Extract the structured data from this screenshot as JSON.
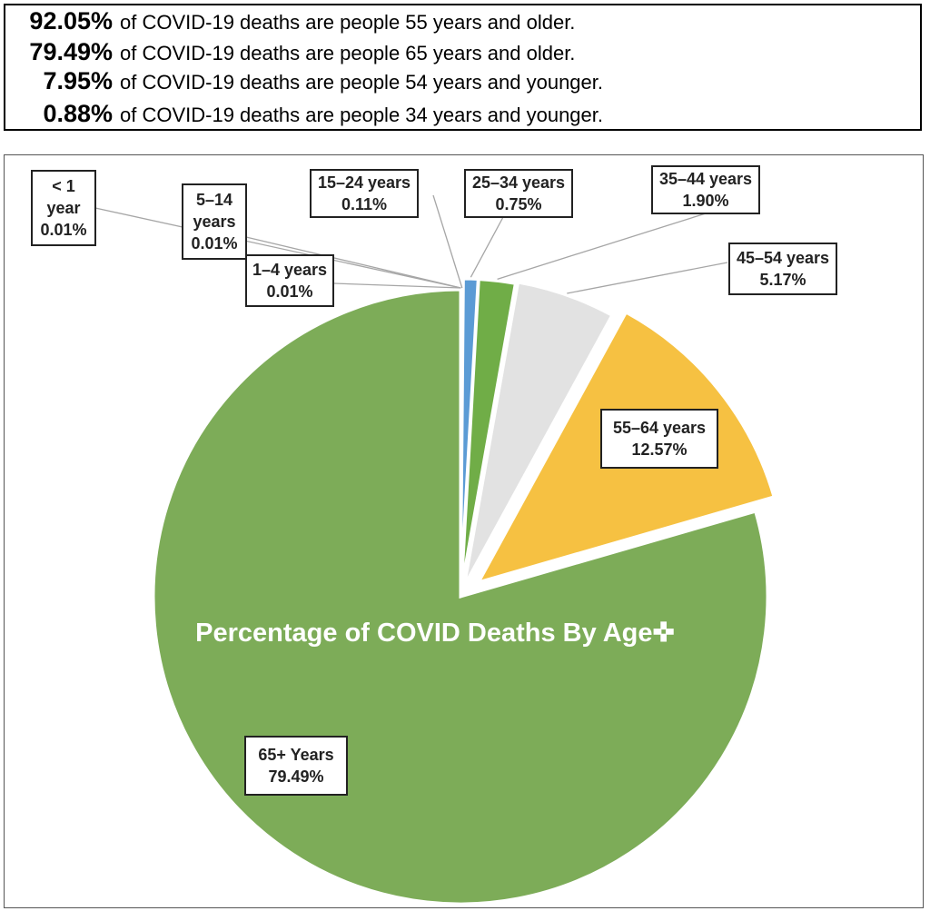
{
  "summary": [
    {
      "pct": "92.05%",
      "text": "of COVID-19 deaths are people 55 years and older."
    },
    {
      "pct": "79.49%",
      "text": "of COVID-19 deaths are people 65 years and older."
    },
    {
      "pct": "7.95%",
      "text": "of COVID-19 deaths are people 54 years and younger."
    },
    {
      "pct": "0.88%",
      "text": "of COVID-19 deaths are people 34 years and younger."
    }
  ],
  "chart_data": {
    "type": "pie",
    "title": "Percentage of COVID Deaths By Age✜",
    "slices": [
      {
        "label_lines": [
          "< 1",
          "year",
          "0.01%"
        ],
        "value": 0.01,
        "color": "#5b9bd5"
      },
      {
        "label_lines": [
          "1–4 years",
          "0.01%"
        ],
        "value": 0.01,
        "color": "#5b9bd5"
      },
      {
        "label_lines": [
          "5–14",
          "years",
          "0.01%"
        ],
        "value": 0.01,
        "color": "#5b9bd5"
      },
      {
        "label_lines": [
          "15–24 years",
          "0.11%"
        ],
        "value": 0.11,
        "color": "#5b9bd5"
      },
      {
        "label_lines": [
          "25–34 years",
          "0.75%"
        ],
        "value": 0.75,
        "color": "#5b9bd5"
      },
      {
        "label_lines": [
          "35–44 years",
          "1.90%"
        ],
        "value": 1.9,
        "color": "#70ad47"
      },
      {
        "label_lines": [
          "45–54 years",
          "5.17%"
        ],
        "value": 5.17,
        "color": "#e2e2e2"
      },
      {
        "label_lines": [
          "55–64 years",
          "12.57%"
        ],
        "value": 12.57,
        "color": "#f6c142"
      },
      {
        "label_lines": [
          "65+ Years",
          "79.49%"
        ],
        "value": 79.49,
        "color": "#7dac58"
      }
    ]
  }
}
